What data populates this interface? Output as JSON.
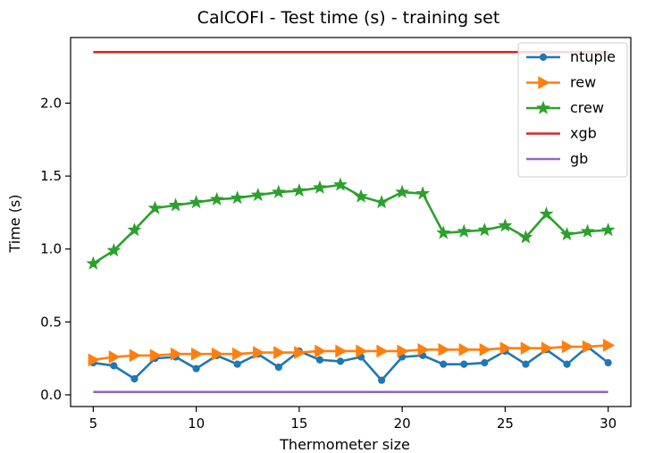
{
  "chart_data": {
    "type": "line",
    "title": "CalCOFI - Test time (s) - training set",
    "xlabel": "Thermometer size",
    "ylabel": "Time (s)",
    "xlim": [
      3.9,
      31.1
    ],
    "ylim": [
      -0.08,
      2.45
    ],
    "xticks": [
      5,
      10,
      15,
      20,
      25,
      30
    ],
    "yticks": [
      0.0,
      0.5,
      1.0,
      1.5,
      2.0
    ],
    "ytick_labels": [
      "0.0",
      "0.5",
      "1.0",
      "1.5",
      "2.0"
    ],
    "grid": false,
    "legend_position": "top-right",
    "x": [
      5,
      6,
      7,
      8,
      9,
      10,
      11,
      12,
      13,
      14,
      15,
      16,
      17,
      18,
      19,
      20,
      21,
      22,
      23,
      24,
      25,
      26,
      27,
      28,
      29,
      30
    ],
    "series": [
      {
        "name": "ntuple",
        "color": "#1f77b4",
        "marker": "dot",
        "values": [
          0.22,
          0.2,
          0.11,
          0.25,
          0.26,
          0.18,
          0.27,
          0.21,
          0.28,
          0.19,
          0.3,
          0.24,
          0.23,
          0.26,
          0.1,
          0.26,
          0.27,
          0.21,
          0.21,
          0.22,
          0.3,
          0.21,
          0.31,
          0.21,
          0.33,
          0.22
        ]
      },
      {
        "name": "rew",
        "color": "#ff7f0e",
        "marker": "triangle-right",
        "values": [
          0.24,
          0.26,
          0.27,
          0.27,
          0.28,
          0.28,
          0.28,
          0.28,
          0.29,
          0.29,
          0.29,
          0.3,
          0.3,
          0.3,
          0.3,
          0.3,
          0.31,
          0.31,
          0.31,
          0.31,
          0.32,
          0.32,
          0.32,
          0.33,
          0.33,
          0.34
        ]
      },
      {
        "name": "crew",
        "color": "#2ca02c",
        "marker": "star",
        "values": [
          0.9,
          0.99,
          1.13,
          1.28,
          1.3,
          1.32,
          1.34,
          1.35,
          1.37,
          1.39,
          1.4,
          1.42,
          1.44,
          1.36,
          1.32,
          1.39,
          1.38,
          1.11,
          1.12,
          1.13,
          1.16,
          1.08,
          1.24,
          1.1,
          1.12,
          1.13
        ]
      },
      {
        "name": "xgb",
        "color": "#d62728",
        "marker": "none",
        "values": [
          2.35,
          2.35,
          2.35,
          2.35,
          2.35,
          2.35,
          2.35,
          2.35,
          2.35,
          2.35,
          2.35,
          2.35,
          2.35,
          2.35,
          2.35,
          2.35,
          2.35,
          2.35,
          2.35,
          2.35,
          2.35,
          2.35,
          2.35,
          2.35,
          2.35,
          2.35
        ]
      },
      {
        "name": "gb",
        "color": "#9467bd",
        "marker": "none",
        "values": [
          0.02,
          0.02,
          0.02,
          0.02,
          0.02,
          0.02,
          0.02,
          0.02,
          0.02,
          0.02,
          0.02,
          0.02,
          0.02,
          0.02,
          0.02,
          0.02,
          0.02,
          0.02,
          0.02,
          0.02,
          0.02,
          0.02,
          0.02,
          0.02,
          0.02,
          0.02
        ]
      }
    ]
  }
}
